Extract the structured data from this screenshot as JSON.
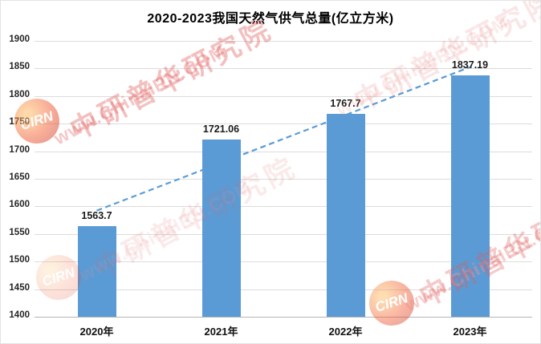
{
  "page": {
    "background": "#ffffff"
  },
  "watermark": {
    "url_text": "www.ChinaIRN.COM",
    "brand_text": "中研普华研究院",
    "logo_text": "CIRN",
    "color_url": "#ef9191",
    "color_brand": "#e05c5c"
  },
  "chart_data": {
    "type": "bar",
    "title": "2020-2023我国天然气供气总量(亿立方米)",
    "categories": [
      "2020年",
      "2021年",
      "2022年",
      "2023年"
    ],
    "values": [
      1563.7,
      1721.06,
      1767.7,
      1837.19
    ],
    "value_labels": [
      "1563.7",
      "1721.06",
      "1767.7",
      "1837.19"
    ],
    "unit": "亿立方米",
    "xlabel": "",
    "ylabel": "",
    "ylim": [
      1400,
      1900
    ],
    "ytick_step": 50,
    "yticks": [
      1400,
      1450,
      1500,
      1550,
      1600,
      1650,
      1700,
      1750,
      1800,
      1850,
      1900
    ],
    "grid": "horizontal",
    "legend": "none",
    "bar_color": "#5b9bd5",
    "trendline": {
      "type": "linear",
      "style": "dashed",
      "color": "#5b9bd5"
    }
  }
}
